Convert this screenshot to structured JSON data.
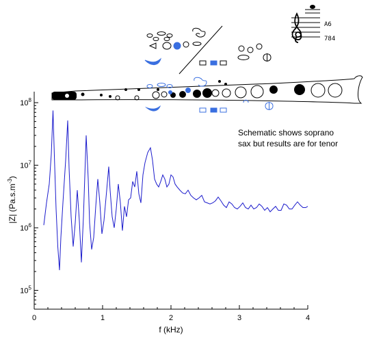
{
  "chart_data": {
    "type": "line",
    "title": "",
    "xlabel": "f (kHz)",
    "ylabel_main": "|Z| (Pa.s.m",
    "ylabel_sup": "-3",
    "ylabel_close": ")",
    "xlim": [
      0,
      4
    ],
    "ylim": [
      50000,
      150000000
    ],
    "y_scale": "log",
    "x_ticks": [
      0,
      1,
      2,
      3,
      4
    ],
    "y_tick_labels": [
      {
        "value": 100000,
        "base": "10",
        "exp": "5"
      },
      {
        "value": 1000000,
        "base": "10",
        "exp": "6"
      },
      {
        "value": 10000000,
        "base": "10",
        "exp": "7"
      },
      {
        "value": 100000000,
        "base": "10",
        "exp": "8"
      }
    ],
    "grid": false,
    "annotation_line1": "Schematic shows soprano",
    "annotation_line2": "sax but results are for tenor",
    "note_name": "A6",
    "note_freq": "784",
    "line_color": "#1a1acc",
    "series": [
      {
        "x": [
          0.14,
          0.18,
          0.22,
          0.25,
          0.275,
          0.295,
          0.32,
          0.345,
          0.37,
          0.39,
          0.42,
          0.46,
          0.49,
          0.51,
          0.54,
          0.57,
          0.6,
          0.63,
          0.66,
          0.69,
          0.72,
          0.76,
          0.79,
          0.81,
          0.84,
          0.87,
          0.9,
          0.93,
          0.96,
          0.99,
          1.02,
          1.06,
          1.09,
          1.11,
          1.14,
          1.17,
          1.2,
          1.23,
          1.26,
          1.29,
          1.32,
          1.35,
          1.38,
          1.41,
          1.44,
          1.47,
          1.5,
          1.53,
          1.56,
          1.59,
          1.62,
          1.66,
          1.7,
          1.73,
          1.76,
          1.79,
          1.82,
          1.85,
          1.88,
          1.91,
          1.94,
          1.97,
          2.0,
          2.03,
          2.06,
          2.09,
          2.13,
          2.17,
          2.21,
          2.25,
          2.29,
          2.33,
          2.37,
          2.41,
          2.45,
          2.49,
          2.53,
          2.57,
          2.61,
          2.65,
          2.69,
          2.73,
          2.77,
          2.81,
          2.85,
          2.89,
          2.93,
          2.97,
          3.01,
          3.05,
          3.09,
          3.13,
          3.17,
          3.21,
          3.25,
          3.29,
          3.33,
          3.37,
          3.41,
          3.45,
          3.49,
          3.53,
          3.57,
          3.61,
          3.65,
          3.69,
          3.73,
          3.77,
          3.81,
          3.85,
          3.89,
          3.93,
          3.97,
          4.0
        ],
        "y": [
          1100000,
          2500000,
          5000000,
          15000000,
          75000000,
          14000000,
          2000000,
          500000,
          210000,
          700000,
          2500000,
          12000000,
          52000000,
          9000000,
          1500000,
          500000,
          1200000,
          4000000,
          1300000,
          280000,
          1500000,
          30000000,
          6000000,
          1200000,
          450000,
          700000,
          2200000,
          6000000,
          2500000,
          800000,
          1300000,
          4000000,
          9500000,
          4000000,
          1500000,
          1000000,
          2000000,
          5000000,
          2500000,
          900000,
          2200000,
          1500000,
          2800000,
          3000000,
          5500000,
          4500000,
          8000000,
          3500000,
          2500000,
          7000000,
          11000000,
          16000000,
          19000000,
          12000000,
          6000000,
          5000000,
          4500000,
          5500000,
          7000000,
          6000000,
          4500000,
          5000000,
          7000000,
          6500000,
          5000000,
          4500000,
          4000000,
          3600000,
          3500000,
          4000000,
          3300000,
          3000000,
          2800000,
          3000000,
          3300000,
          2600000,
          2500000,
          2400000,
          2500000,
          2700000,
          3100000,
          2700000,
          2300000,
          2100000,
          2600000,
          2400000,
          2100000,
          2000000,
          2200000,
          2500000,
          2100000,
          2000000,
          2300000,
          2000000,
          2100000,
          2400000,
          2200000,
          1900000,
          2100000,
          1800000,
          2000000,
          2200000,
          1900000,
          1900000,
          2400000,
          2300000,
          2000000,
          2000000,
          2300000,
          2600000,
          2300000,
          2100000,
          2100000,
          2200000
        ]
      }
    ]
  }
}
